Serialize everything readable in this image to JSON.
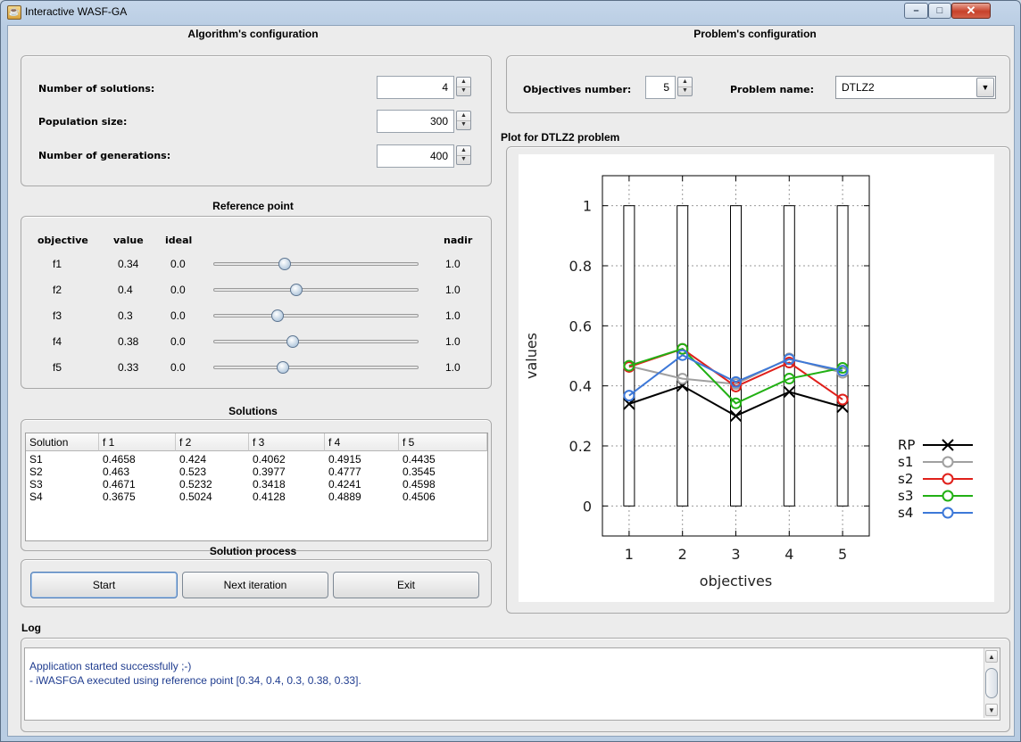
{
  "window": {
    "title": "Interactive WASF-GA"
  },
  "algorithm_config": {
    "title": "Algorithm's configuration",
    "fields": [
      {
        "label": "Number of solutions:",
        "value": "4"
      },
      {
        "label": "Population size:",
        "value": "300"
      },
      {
        "label": "Number of generations:",
        "value": "400"
      }
    ]
  },
  "reference_point": {
    "title": "Reference point",
    "headers": {
      "objective": "objective",
      "value": "value",
      "ideal": "ideal",
      "nadir": "nadir"
    },
    "rows": [
      {
        "objective": "f1",
        "value": "0.34",
        "ideal": "0.0",
        "nadir": "1.0",
        "level": 0.34
      },
      {
        "objective": "f2",
        "value": "0.4",
        "ideal": "0.0",
        "nadir": "1.0",
        "level": 0.4
      },
      {
        "objective": "f3",
        "value": "0.3",
        "ideal": "0.0",
        "nadir": "1.0",
        "level": 0.3
      },
      {
        "objective": "f4",
        "value": "0.38",
        "ideal": "0.0",
        "nadir": "1.0",
        "level": 0.38
      },
      {
        "objective": "f5",
        "value": "0.33",
        "ideal": "0.0",
        "nadir": "1.0",
        "level": 0.33
      }
    ]
  },
  "solutions": {
    "title": "Solutions",
    "columns": [
      "Solution",
      "f 1",
      "f 2",
      "f 3",
      "f 4",
      "f 5"
    ],
    "rows": [
      [
        "S1",
        "0.4658",
        "0.424",
        "0.4062",
        "0.4915",
        "0.4435"
      ],
      [
        "S2",
        "0.463",
        "0.523",
        "0.3977",
        "0.4777",
        "0.3545"
      ],
      [
        "S3",
        "0.4671",
        "0.5232",
        "0.3418",
        "0.4241",
        "0.4598"
      ],
      [
        "S4",
        "0.3675",
        "0.5024",
        "0.4128",
        "0.4889",
        "0.4506"
      ]
    ]
  },
  "solution_process": {
    "title": "Solution process",
    "start": "Start",
    "next": "Next iteration",
    "exit": "Exit"
  },
  "problem_config": {
    "title": "Problem's configuration",
    "objectives_label": "Objectives number:",
    "objectives_value": "5",
    "problem_label": "Problem name:",
    "problem_value": "DTLZ2"
  },
  "plot": {
    "title": "Plot for DTLZ2 problem"
  },
  "log": {
    "title": "Log",
    "lines": [
      "Application started successfully ;-)",
      "- iWASFGA executed using reference point [0.34, 0.4, 0.3, 0.38, 0.33]."
    ]
  },
  "chart_data": {
    "type": "line",
    "xlabel": "objectives",
    "ylabel": "values",
    "x": [
      1,
      2,
      3,
      4,
      5
    ],
    "xlim": [
      0.5,
      5.5
    ],
    "ylim": [
      -0.1,
      1.1
    ],
    "yticks": [
      "0",
      "0.2",
      "0.4",
      "0.6",
      "0.8",
      "1"
    ],
    "xticks": [
      "1",
      "2",
      "3",
      "4",
      "5"
    ],
    "grid": true,
    "legend_position": "right",
    "series": [
      {
        "name": "RP",
        "color": "#000000",
        "marker": "cross",
        "values": [
          0.34,
          0.4,
          0.3,
          0.38,
          0.33
        ]
      },
      {
        "name": "s1",
        "color": "#a0a0a0",
        "marker": "circle",
        "values": [
          0.4658,
          0.424,
          0.4062,
          0.4915,
          0.4435
        ]
      },
      {
        "name": "s2",
        "color": "#e0201b",
        "marker": "circle",
        "values": [
          0.463,
          0.523,
          0.3977,
          0.4777,
          0.3545
        ]
      },
      {
        "name": "s3",
        "color": "#22b014",
        "marker": "circle",
        "values": [
          0.4671,
          0.5232,
          0.3418,
          0.4241,
          0.4598
        ]
      },
      {
        "name": "s4",
        "color": "#3d78d8",
        "marker": "circle",
        "values": [
          0.3675,
          0.5024,
          0.4128,
          0.4889,
          0.4506
        ]
      }
    ]
  }
}
